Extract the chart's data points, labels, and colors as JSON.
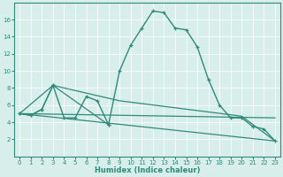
{
  "xlabel": "Humidex (Indice chaleur)",
  "line_color": "#2e8b7a",
  "bg_color": "#d8eeeb",
  "grid_color": "#ffffff",
  "xlim": [
    -0.5,
    23.5
  ],
  "ylim": [
    0,
    18
  ],
  "yticks": [
    2,
    4,
    6,
    8,
    10,
    12,
    14,
    16
  ],
  "xticks": [
    0,
    1,
    2,
    3,
    4,
    5,
    6,
    7,
    8,
    9,
    10,
    11,
    12,
    13,
    14,
    15,
    16,
    17,
    18,
    19,
    20,
    21,
    22,
    23
  ],
  "main_x": [
    0,
    1,
    2,
    3,
    4,
    5,
    6,
    7,
    8,
    9,
    10,
    11,
    12,
    13,
    14,
    15,
    16,
    17,
    18,
    19,
    20,
    21,
    22,
    23
  ],
  "main_y": [
    5.0,
    4.8,
    5.5,
    8.3,
    4.5,
    4.5,
    7.0,
    6.5,
    3.7,
    10.0,
    13.0,
    15.0,
    17.0,
    16.8,
    15.0,
    14.8,
    12.8,
    9.0,
    6.0,
    4.5,
    4.5,
    3.5,
    3.2,
    1.8
  ],
  "line2_x": [
    0,
    1,
    2,
    3,
    8
  ],
  "line2_y": [
    5.0,
    4.8,
    5.5,
    8.3,
    3.7
  ],
  "line3_x": [
    0,
    3,
    9,
    20,
    23
  ],
  "line3_y": [
    5.0,
    8.3,
    6.5,
    4.7,
    1.8
  ],
  "line4_x": [
    0,
    23
  ],
  "line4_y": [
    5.0,
    4.5
  ],
  "line5_x": [
    0,
    23
  ],
  "line5_y": [
    5.0,
    1.8
  ]
}
